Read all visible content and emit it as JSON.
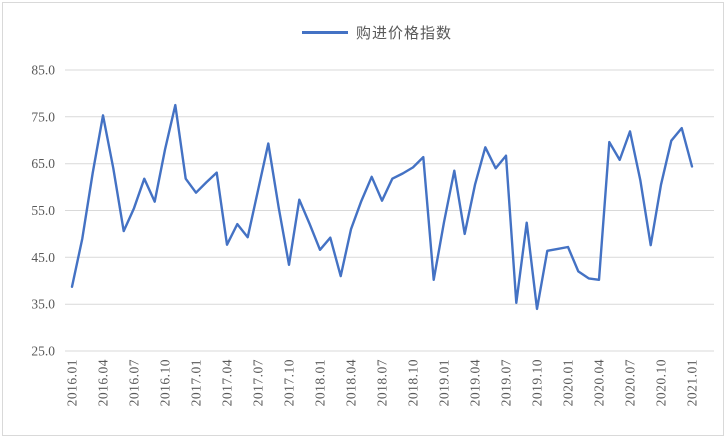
{
  "chart_data": {
    "type": "line",
    "title": "",
    "xlabel": "",
    "ylabel": "",
    "legend_position": "top-center",
    "grid": "horizontal",
    "ylim": [
      25,
      85
    ],
    "ytick_step": 10,
    "ytick_labels": [
      "25.0",
      "35.0",
      "45.0",
      "55.0",
      "65.0",
      "75.0",
      "85.0"
    ],
    "xtick_every": 3,
    "xtick_labels": [
      "2016.01",
      "2016.04",
      "2016.07",
      "2016.10",
      "2017.01",
      "2017.04",
      "2017.07",
      "2017.10",
      "2018.01",
      "2018.04",
      "2018.07",
      "2018.10",
      "2019.01",
      "2019.04",
      "2019.07",
      "2019.10",
      "2020.01",
      "2020.04",
      "2020.07",
      "2020.10",
      "2021.01"
    ],
    "x": [
      "2016.01",
      "2016.02",
      "2016.03",
      "2016.04",
      "2016.05",
      "2016.06",
      "2016.07",
      "2016.08",
      "2016.09",
      "2016.10",
      "2016.11",
      "2016.12",
      "2017.01",
      "2017.02",
      "2017.03",
      "2017.04",
      "2017.05",
      "2017.06",
      "2017.07",
      "2017.08",
      "2017.09",
      "2017.10",
      "2017.11",
      "2017.12",
      "2018.01",
      "2018.02",
      "2018.03",
      "2018.04",
      "2018.05",
      "2018.06",
      "2018.07",
      "2018.08",
      "2018.09",
      "2018.10",
      "2018.11",
      "2018.12",
      "2019.01",
      "2019.02",
      "2019.03",
      "2019.04",
      "2019.05",
      "2019.06",
      "2019.07",
      "2019.08",
      "2019.09",
      "2019.10",
      "2019.11",
      "2019.12",
      "2020.01",
      "2020.02",
      "2020.03",
      "2020.04",
      "2020.05",
      "2020.06",
      "2020.07",
      "2020.08",
      "2020.09",
      "2020.10",
      "2020.11",
      "2020.12",
      "2021.01"
    ],
    "series": [
      {
        "name": "购进价格指数",
        "color": "#4472C4",
        "values": [
          38.7,
          49.0,
          63.0,
          75.3,
          64.0,
          50.6,
          55.5,
          61.8,
          56.9,
          68.0,
          77.5,
          61.8,
          58.8,
          61.0,
          63.1,
          47.7,
          52.1,
          49.3,
          59.3,
          69.3,
          55.6,
          43.4,
          57.3,
          52.1,
          46.6,
          49.2,
          41.0,
          51.0,
          57.0,
          62.2,
          57.1,
          61.8,
          62.9,
          64.2,
          66.4,
          40.2,
          52.5,
          63.5,
          50.0,
          60.5,
          68.5,
          64.0,
          66.7,
          35.3,
          52.4,
          34.0,
          46.4,
          46.8,
          47.2,
          42.0,
          40.5,
          40.2,
          69.6,
          65.8,
          71.9,
          61.5,
          47.6,
          60.5,
          69.9,
          72.6,
          64.4
        ]
      }
    ],
    "colors": {
      "background": "#FFFFFF",
      "border": "#D9D9D9",
      "gridline": "#D9D9D9",
      "tick_label": "#595959",
      "legend_text": "#595959"
    }
  }
}
